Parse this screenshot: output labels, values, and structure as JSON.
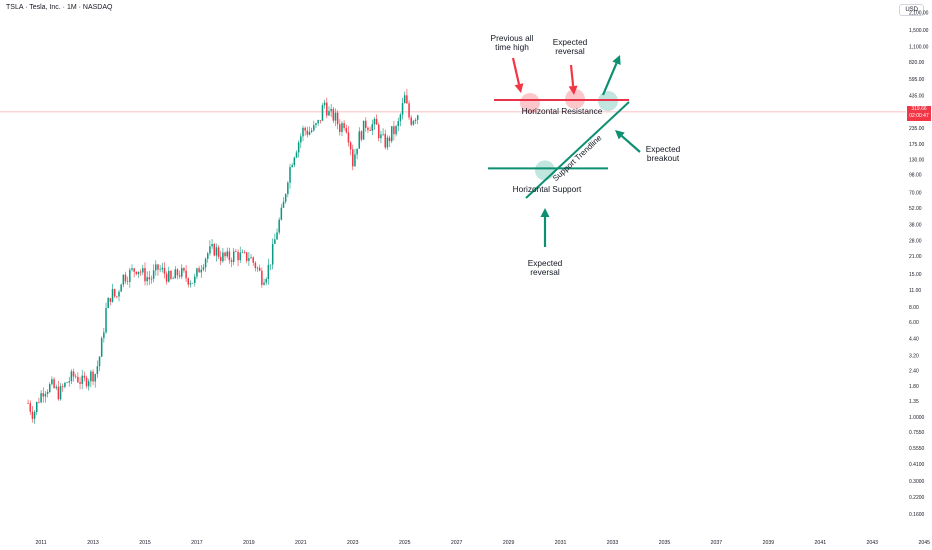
{
  "header": {
    "symbol_title": "TSLA · Tesla, Inc. · 1M · NASDAQ",
    "currency": "USD"
  },
  "last_price": {
    "value": "319.66",
    "countdown": "02:00:47"
  },
  "colors": {
    "up": "#089981",
    "down": "#f23645",
    "resistance": "#e8334a",
    "support": "#0d8f72",
    "arrow_red": "#f23645",
    "arrow_green": "#0d8f72",
    "price_line": "#f7a9b0"
  },
  "chart_data": {
    "type": "candlestick",
    "yscale": "log",
    "ylim": [
      0.13,
      2600
    ],
    "xlim": [
      2010.4,
      2045.8
    ],
    "yticks": [
      "2,100.00",
      "1,500.00",
      "1,100.00",
      "820.00",
      "595.00",
      "435.00",
      "235.00",
      "175.00",
      "130.00",
      "98.00",
      "70.00",
      "52.00",
      "38.00",
      "28.00",
      "21.00",
      "15.00",
      "11.00",
      "8.00",
      "6.00",
      "4.40",
      "3.20",
      "2.40",
      "1.80",
      "1.35",
      "1.0000",
      "0.7550",
      "0.5550",
      "0.4100",
      "0.3000",
      "0.2200",
      "0.1600"
    ],
    "ytick_values": [
      2100,
      1500,
      1100,
      820,
      595,
      435,
      235,
      175,
      130,
      98,
      70,
      52,
      38,
      28,
      21,
      15,
      11,
      8,
      6,
      4.4,
      3.2,
      2.4,
      1.8,
      1.35,
      1.0,
      0.755,
      0.555,
      0.41,
      0.3,
      0.22,
      0.16
    ],
    "xticks": [
      "2011",
      "2013",
      "2015",
      "2017",
      "2019",
      "2021",
      "2023",
      "2025",
      "2027",
      "2029",
      "2031",
      "2033",
      "2035",
      "2037",
      "2039",
      "2041",
      "2043",
      "2045"
    ],
    "xtick_values": [
      2011,
      2013,
      2015,
      2017,
      2019,
      2021,
      2023,
      2025,
      2027,
      2029,
      2031,
      2033,
      2035,
      2037,
      2039,
      2041,
      2043,
      2045
    ],
    "price_path": [
      [
        2010.5,
        1.3
      ],
      [
        2010.7,
        1.05
      ],
      [
        2010.9,
        1.4
      ],
      [
        2011.1,
        1.7
      ],
      [
        2011.4,
        1.8
      ],
      [
        2011.7,
        1.55
      ],
      [
        2012.0,
        1.95
      ],
      [
        2012.3,
        2.2
      ],
      [
        2012.6,
        1.9
      ],
      [
        2012.9,
        2.2
      ],
      [
        2013.1,
        2.3
      ],
      [
        2013.3,
        3.5
      ],
      [
        2013.5,
        7.5
      ],
      [
        2013.7,
        10.5
      ],
      [
        2013.9,
        9.5
      ],
      [
        2014.1,
        14
      ],
      [
        2014.4,
        15
      ],
      [
        2014.7,
        17
      ],
      [
        2014.9,
        15
      ],
      [
        2015.2,
        13.5
      ],
      [
        2015.5,
        16.5
      ],
      [
        2015.8,
        15
      ],
      [
        2016.0,
        13
      ],
      [
        2016.3,
        15.5
      ],
      [
        2016.6,
        14
      ],
      [
        2016.9,
        13
      ],
      [
        2017.1,
        17
      ],
      [
        2017.4,
        22
      ],
      [
        2017.7,
        24
      ],
      [
        2017.9,
        21
      ],
      [
        2018.2,
        20
      ],
      [
        2018.5,
        22
      ],
      [
        2018.8,
        20
      ],
      [
        2019.0,
        21
      ],
      [
        2019.3,
        17
      ],
      [
        2019.5,
        14
      ],
      [
        2019.7,
        15.5
      ],
      [
        2019.9,
        22
      ],
      [
        2020.1,
        36
      ],
      [
        2020.3,
        50
      ],
      [
        2020.5,
        95
      ],
      [
        2020.7,
        140
      ],
      [
        2020.9,
        180
      ],
      [
        2021.1,
        230
      ],
      [
        2021.3,
        220
      ],
      [
        2021.5,
        230
      ],
      [
        2021.7,
        260
      ],
      [
        2021.9,
        390
      ],
      [
        2022.1,
        300
      ],
      [
        2022.3,
        290
      ],
      [
        2022.5,
        240
      ],
      [
        2022.7,
        270
      ],
      [
        2022.9,
        180
      ],
      [
        2023.0,
        123
      ],
      [
        2023.2,
        190
      ],
      [
        2023.5,
        255
      ],
      [
        2023.7,
        250
      ],
      [
        2023.9,
        245
      ],
      [
        2024.1,
        190
      ],
      [
        2024.3,
        175
      ],
      [
        2024.5,
        215
      ],
      [
        2024.7,
        230
      ],
      [
        2024.9,
        340
      ],
      [
        2025.0,
        415
      ],
      [
        2025.2,
        270
      ],
      [
        2025.4,
        300
      ],
      [
        2025.55,
        319.66
      ]
    ],
    "last_price": 319.66,
    "annotations": [
      {
        "text": "Horizontal Resistance",
        "price": 400
      },
      {
        "text": "Horizontal Support",
        "price": 110
      },
      {
        "text": "Support Trendline"
      },
      {
        "text": "Previous all time high"
      },
      {
        "text": "Expected reversal"
      },
      {
        "text": "Expected reversal"
      },
      {
        "text": "Expected breakout"
      }
    ],
    "labels": {
      "resistance": "Horizontal Resistance",
      "support": "Horizontal Support",
      "trendline": "Support Trendline",
      "ath_line1": "Previous all",
      "ath_line2": "time high",
      "rev_top_line1": "Expected",
      "rev_top_line2": "reversal",
      "rev_bottom_line1": "Expected",
      "rev_bottom_line2": "reversal",
      "breakout_line1": "Expected",
      "breakout_line2": "breakout"
    }
  }
}
